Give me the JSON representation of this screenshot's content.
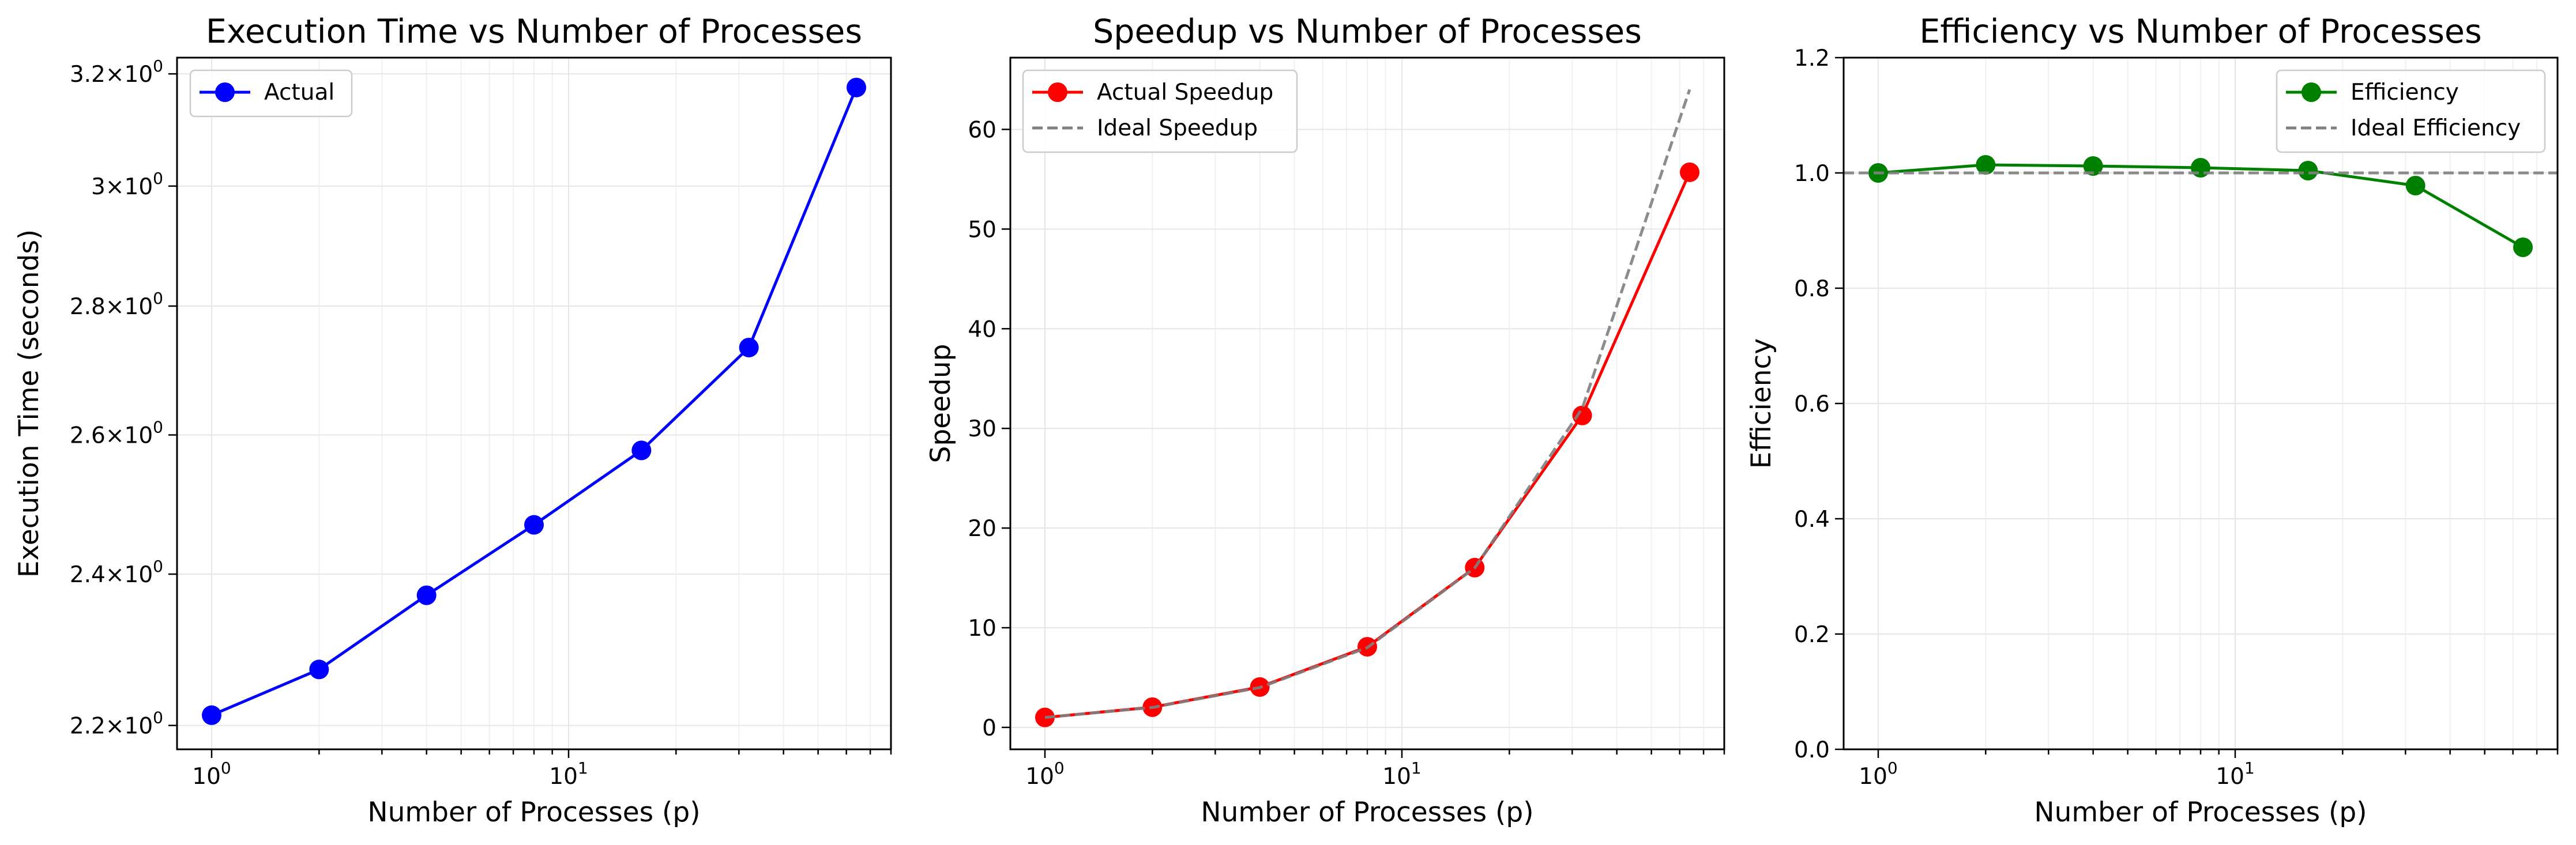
{
  "chart_data": [
    {
      "type": "line",
      "title": "Execution Time vs Number of Processes",
      "xlabel": "Number of Processes (p)",
      "ylabel": "Execution Time (seconds)",
      "xscale": "log",
      "yscale": "log",
      "x": [
        1,
        2,
        4,
        8,
        16,
        32,
        64
      ],
      "xlim": [
        0.8,
        80
      ],
      "ylim": [
        2.17,
        3.23
      ],
      "xticks": [
        {
          "v": 1,
          "b": "10",
          "e": "0"
        },
        {
          "v": 10,
          "b": "10",
          "e": "1"
        }
      ],
      "yticks": [
        {
          "v": 2.2,
          "m": "2.2",
          "b": "10",
          "e": "0"
        },
        {
          "v": 2.4,
          "m": "2.4",
          "b": "10",
          "e": "0"
        },
        {
          "v": 2.6,
          "m": "2.6",
          "b": "10",
          "e": "0"
        },
        {
          "v": 2.8,
          "m": "2.8",
          "b": "10",
          "e": "0"
        },
        {
          "v": 3.0,
          "m": "3",
          "b": "10",
          "e": "0"
        },
        {
          "v": 3.2,
          "m": "3.2",
          "b": "10",
          "e": "0"
        }
      ],
      "grid": true,
      "legend": "upper left",
      "series": [
        {
          "name": "Actual",
          "values": [
            2.213,
            2.272,
            2.371,
            2.469,
            2.577,
            2.734,
            3.175
          ],
          "color": "#0000ff",
          "style": "solid",
          "marker": "circle"
        }
      ]
    },
    {
      "type": "line",
      "title": "Speedup vs Number of Processes",
      "xlabel": "Number of Processes (p)",
      "ylabel": "Speedup",
      "xscale": "log",
      "yscale": "linear",
      "x": [
        1,
        2,
        4,
        8,
        16,
        32,
        64
      ],
      "xlim": [
        0.8,
        80
      ],
      "ylim": [
        -2.2,
        67.2
      ],
      "xticks": [
        {
          "v": 1,
          "b": "10",
          "e": "0"
        },
        {
          "v": 10,
          "b": "10",
          "e": "1"
        }
      ],
      "yticks": [
        {
          "v": 0,
          "t": "0"
        },
        {
          "v": 10,
          "t": "10"
        },
        {
          "v": 20,
          "t": "20"
        },
        {
          "v": 30,
          "t": "30"
        },
        {
          "v": 40,
          "t": "40"
        },
        {
          "v": 50,
          "t": "50"
        },
        {
          "v": 60,
          "t": "60"
        }
      ],
      "grid": true,
      "legend": "upper left",
      "series": [
        {
          "name": "Actual Speedup",
          "values": [
            1,
            2.03,
            4.05,
            8.09,
            16.03,
            31.3,
            55.7
          ],
          "color": "#ff0000",
          "style": "solid",
          "marker": "circle"
        },
        {
          "name": "Ideal Speedup",
          "values": [
            1,
            2,
            4,
            8,
            16,
            32,
            64
          ],
          "color": "#808080",
          "style": "dashed",
          "marker": "none"
        }
      ]
    },
    {
      "type": "line",
      "title": "Efficiency vs Number of Processes",
      "xlabel": "Number of Processes (p)",
      "ylabel": "Efficiency",
      "xscale": "log",
      "yscale": "linear",
      "x": [
        1,
        2,
        4,
        8,
        16,
        32,
        64
      ],
      "xlim": [
        0.8,
        80
      ],
      "ylim": [
        0,
        1.2
      ],
      "xticks": [
        {
          "v": 1,
          "b": "10",
          "e": "0"
        },
        {
          "v": 10,
          "b": "10",
          "e": "1"
        }
      ],
      "yticks": [
        {
          "v": 0,
          "t": "0.0"
        },
        {
          "v": 0.2,
          "t": "0.2"
        },
        {
          "v": 0.4,
          "t": "0.4"
        },
        {
          "v": 0.6,
          "t": "0.6"
        },
        {
          "v": 0.8,
          "t": "0.8"
        },
        {
          "v": 1.0,
          "t": "1.0"
        },
        {
          "v": 1.2,
          "t": "1.2"
        }
      ],
      "grid": true,
      "legend": "upper right",
      "series": [
        {
          "name": "Efficiency",
          "values": [
            1.0,
            1.014,
            1.012,
            1.009,
            1.004,
            0.978,
            0.871
          ],
          "color": "#008000",
          "style": "solid",
          "marker": "circle"
        },
        {
          "name": "Ideal Efficiency",
          "values": [
            1,
            1,
            1,
            1,
            1,
            1,
            1
          ],
          "color": "#808080",
          "style": "dashed",
          "marker": "none",
          "full_width": true
        }
      ]
    }
  ]
}
